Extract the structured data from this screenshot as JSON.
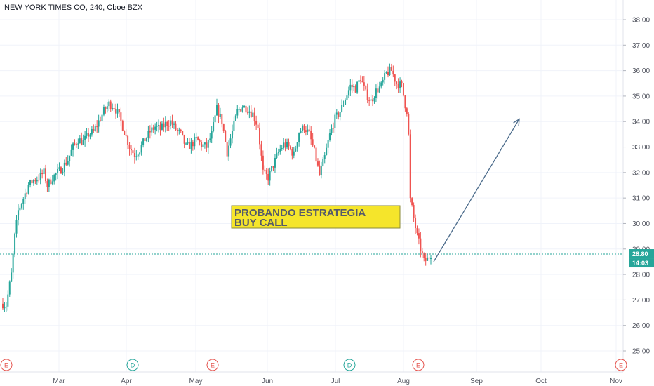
{
  "chart_data": {
    "type": "candlestick",
    "title": "NEW YORK TIMES CO, 240, Cboe BZX",
    "y_axis": {
      "position": "right",
      "ticks": [
        25.0,
        26.0,
        27.0,
        28.0,
        29.0,
        30.0,
        31.0,
        32.0,
        33.0,
        34.0,
        35.0,
        36.0,
        37.0,
        38.0
      ],
      "range": [
        24.5,
        38.5
      ]
    },
    "x_axis": {
      "labels": [
        "Mar",
        "Apr",
        "May",
        "Jun",
        "Jul",
        "Aug",
        "Sep",
        "Oct",
        "Nov"
      ]
    },
    "grid": true,
    "current_price": "28.80",
    "countdown": "14:03",
    "current_price_value": 28.8,
    "events": [
      {
        "letter": "E",
        "type": "earnings"
      },
      {
        "letter": "D",
        "type": "dividend"
      },
      {
        "letter": "E",
        "type": "earnings"
      },
      {
        "letter": "D",
        "type": "dividend"
      },
      {
        "letter": "E",
        "type": "earnings"
      },
      {
        "letter": "E",
        "type": "earnings"
      }
    ],
    "annotation": {
      "lines": [
        "PROBANDO ESTRATEGIA",
        "BUY CALL"
      ]
    },
    "arrow": {
      "from_price": 28.5,
      "to_price": 34.1
    },
    "colors": {
      "up": "#26a69a",
      "down": "#ef5350",
      "grid": "#f0f3fa",
      "price_line": "#26a69a",
      "annotation_bg": "#f5e52b",
      "arrow": "#4a6a8a"
    },
    "price_path": [
      [
        0,
        26.85
      ],
      [
        2,
        26.8
      ],
      [
        5,
        28.0
      ],
      [
        7,
        29.5
      ],
      [
        9,
        30.5
      ],
      [
        12,
        31.0
      ],
      [
        15,
        31.5
      ],
      [
        18,
        31.7
      ],
      [
        21,
        31.8
      ],
      [
        24,
        32.0
      ],
      [
        26,
        31.5
      ],
      [
        29,
        31.8
      ],
      [
        32,
        32.0
      ],
      [
        35,
        32.2
      ],
      [
        38,
        32.5
      ],
      [
        41,
        33.0
      ],
      [
        44,
        33.3
      ],
      [
        47,
        33.2
      ],
      [
        50,
        33.5
      ],
      [
        53,
        33.6
      ],
      [
        56,
        34.0
      ],
      [
        59,
        34.4
      ],
      [
        62,
        34.7
      ],
      [
        65,
        34.6
      ],
      [
        68,
        34.2
      ],
      [
        71,
        33.6
      ],
      [
        74,
        33.0
      ],
      [
        77,
        32.7
      ],
      [
        80,
        32.9
      ],
      [
        83,
        33.3
      ],
      [
        86,
        33.6
      ],
      [
        89,
        33.8
      ],
      [
        92,
        33.7
      ],
      [
        95,
        33.9
      ],
      [
        98,
        34.0
      ],
      [
        101,
        33.7
      ],
      [
        104,
        33.5
      ],
      [
        107,
        33.0
      ],
      [
        110,
        33.1
      ],
      [
        113,
        33.3
      ],
      [
        116,
        33.1
      ],
      [
        119,
        33.0
      ],
      [
        122,
        33.5
      ],
      [
        125,
        34.5
      ],
      [
        128,
        34.0
      ],
      [
        131,
        32.8
      ],
      [
        134,
        33.6
      ],
      [
        137,
        34.4
      ],
      [
        140,
        34.6
      ],
      [
        143,
        34.5
      ],
      [
        146,
        34.3
      ],
      [
        149,
        33.8
      ],
      [
        152,
        32.0
      ],
      [
        155,
        31.8
      ],
      [
        158,
        32.3
      ],
      [
        161,
        32.8
      ],
      [
        164,
        33.1
      ],
      [
        167,
        33.0
      ],
      [
        170,
        32.7
      ],
      [
        173,
        33.6
      ],
      [
        176,
        33.8
      ],
      [
        179,
        33.5
      ],
      [
        182,
        32.8
      ],
      [
        185,
        31.9
      ],
      [
        188,
        32.6
      ],
      [
        191,
        33.5
      ],
      [
        194,
        34.1
      ],
      [
        197,
        34.4
      ],
      [
        200,
        34.9
      ],
      [
        203,
        35.4
      ],
      [
        206,
        35.3
      ],
      [
        209,
        35.7
      ],
      [
        212,
        35.1
      ],
      [
        215,
        34.8
      ],
      [
        218,
        35.2
      ],
      [
        221,
        35.4
      ],
      [
        224,
        35.9
      ],
      [
        227,
        36.0
      ],
      [
        230,
        35.5
      ],
      [
        233,
        35.4
      ],
      [
        236,
        34.3
      ],
      [
        237,
        33.5
      ],
      [
        238,
        31.0
      ],
      [
        240,
        30.2
      ],
      [
        242,
        29.5
      ],
      [
        244,
        29.0
      ],
      [
        246,
        28.5
      ],
      [
        248,
        28.6
      ],
      [
        250,
        28.8
      ]
    ]
  }
}
